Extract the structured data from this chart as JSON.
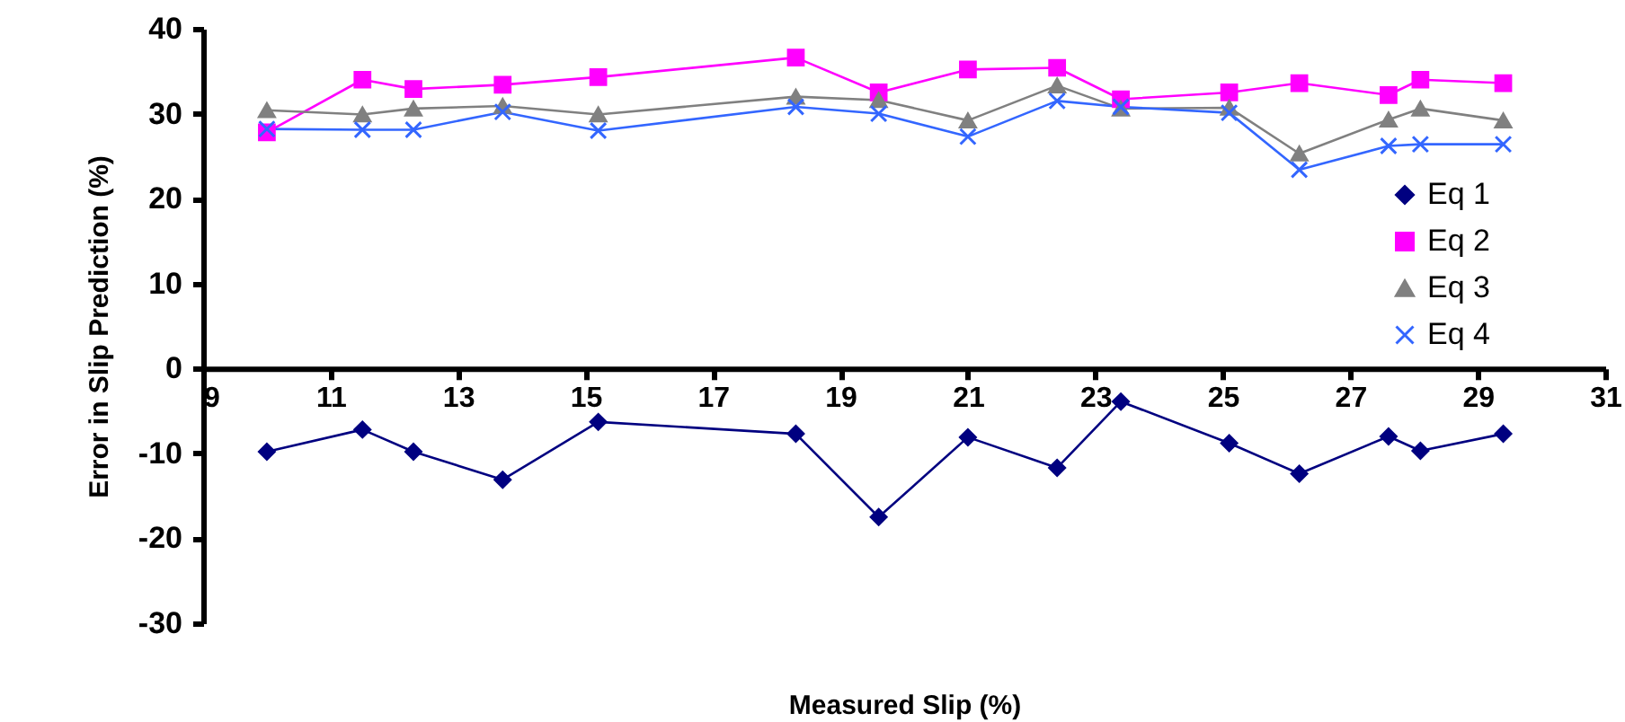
{
  "chart_data": {
    "type": "line",
    "xlabel": "Measured Slip (%)",
    "ylabel": "Error in Slip Prediction (%)",
    "x": [
      10.0,
      11.5,
      12.3,
      13.7,
      15.2,
      18.3,
      19.6,
      21.0,
      22.4,
      23.4,
      25.1,
      26.2,
      27.6,
      28.1,
      29.4
    ],
    "series": [
      {
        "name": "Eq 1",
        "color": "#000080",
        "marker": "diamond",
        "values": [
          -9.8,
          -7.2,
          -9.8,
          -13.1,
          -6.3,
          -7.7,
          -17.5,
          -8.1,
          -11.7,
          -3.9,
          -8.8,
          -12.4,
          -8.0,
          -9.7,
          -7.7
        ]
      },
      {
        "name": "Eq 2",
        "color": "#ff00ff",
        "marker": "square",
        "values": [
          27.8,
          34.0,
          32.9,
          33.4,
          34.3,
          36.6,
          32.5,
          35.2,
          35.4,
          31.7,
          32.5,
          33.6,
          32.2,
          34.0,
          33.6
        ]
      },
      {
        "name": "Eq 3",
        "color": "#808080",
        "marker": "triangle",
        "values": [
          30.4,
          29.9,
          30.6,
          30.9,
          29.9,
          32.0,
          31.6,
          29.2,
          33.3,
          30.6,
          30.7,
          25.3,
          29.3,
          30.6,
          29.2
        ]
      },
      {
        "name": "Eq 4",
        "color": "#3366ff",
        "marker": "cross",
        "values": [
          28.2,
          28.1,
          28.1,
          30.2,
          28.0,
          30.8,
          30.0,
          27.3,
          31.5,
          30.8,
          30.1,
          23.4,
          26.2,
          26.4,
          26.4
        ]
      }
    ],
    "xlim": [
      9,
      31
    ],
    "xticks": [
      9,
      11,
      13,
      15,
      17,
      19,
      21,
      23,
      25,
      27,
      29,
      31
    ],
    "ylim": [
      -30,
      40
    ],
    "yticks": [
      -30,
      -20,
      -10,
      0,
      10,
      20,
      30,
      40
    ],
    "grid": false,
    "legend": "right"
  }
}
